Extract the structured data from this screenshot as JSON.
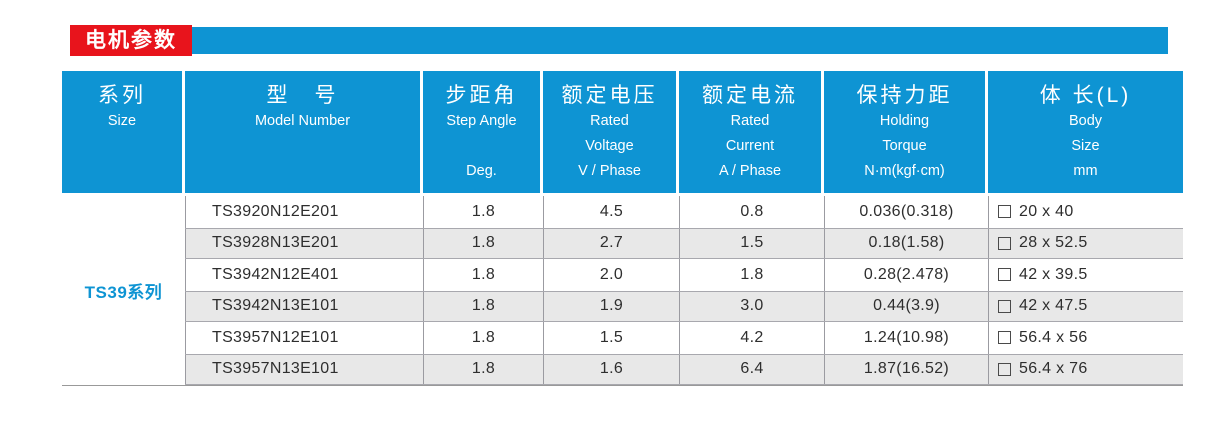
{
  "banner": {
    "title": "电机参数"
  },
  "colors": {
    "accent_blue": "#0e94d3",
    "banner_red": "#e8141c",
    "row_alt_gray": "#e8e8e8",
    "border_gray": "#999999"
  },
  "table": {
    "columns": [
      {
        "zh": "系列",
        "en1": "Size",
        "en2": "",
        "en3": ""
      },
      {
        "zh": "型　号",
        "en1": "Model Number",
        "en2": "",
        "en3": ""
      },
      {
        "zh": "步距角",
        "en1": "Step Angle",
        "en2": "",
        "en3": "Deg."
      },
      {
        "zh": "额定电压",
        "en1": "Rated",
        "en2": "Voltage",
        "en3": "V / Phase"
      },
      {
        "zh": "额定电流",
        "en1": "Rated",
        "en2": "Current",
        "en3": "A / Phase"
      },
      {
        "zh": "保持力距",
        "en1": "Holding",
        "en2": "Torque",
        "en3": "N·m(kgf·cm)"
      },
      {
        "zh": "体 长(L)",
        "en1": "Body",
        "en2": "Size",
        "en3": "mm"
      }
    ],
    "series_label": "TS39系列",
    "rows": [
      {
        "model": "TS3920N12E201",
        "step_angle": "1.8",
        "voltage": "4.5",
        "current": "0.8",
        "torque": "0.036(0.318)",
        "body": "20 x 40"
      },
      {
        "model": "TS3928N13E201",
        "step_angle": "1.8",
        "voltage": "2.7",
        "current": "1.5",
        "torque": "0.18(1.58)",
        "body": "28 x 52.5"
      },
      {
        "model": "TS3942N12E401",
        "step_angle": "1.8",
        "voltage": "2.0",
        "current": "1.8",
        "torque": "0.28(2.478)",
        "body": "42 x 39.5"
      },
      {
        "model": "TS3942N13E101",
        "step_angle": "1.8",
        "voltage": "1.9",
        "current": "3.0",
        "torque": "0.44(3.9)",
        "body": "42 x 47.5"
      },
      {
        "model": "TS3957N12E101",
        "step_angle": "1.8",
        "voltage": "1.5",
        "current": "4.2",
        "torque": "1.24(10.98)",
        "body": "56.4 x 56"
      },
      {
        "model": "TS3957N13E101",
        "step_angle": "1.8",
        "voltage": "1.6",
        "current": "6.4",
        "torque": "1.87(16.52)",
        "body": "56.4 x 76"
      }
    ]
  }
}
